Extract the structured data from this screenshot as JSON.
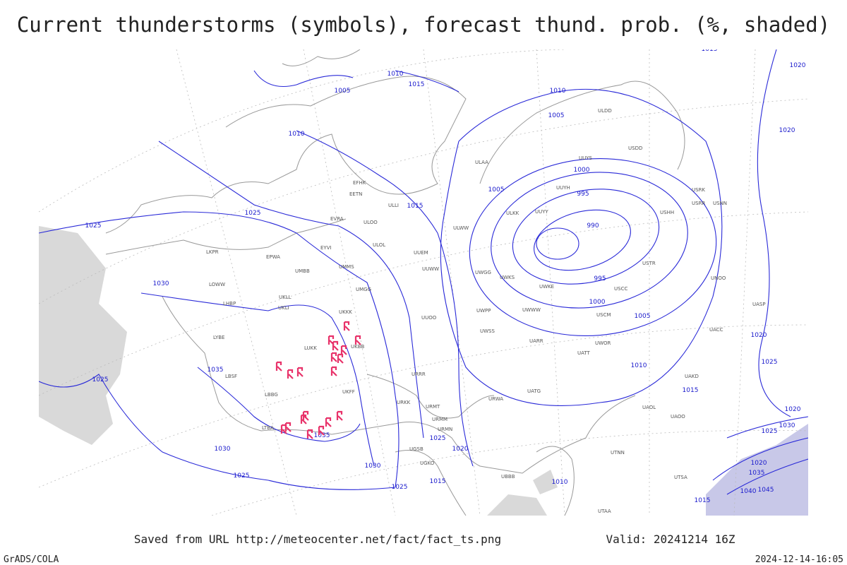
{
  "header": {
    "title": "Current thunderstorms (symbols), forecast thund. prob. (%, shaded)"
  },
  "footer": {
    "source": "Saved from URL http://meteocenter.net/fact/fact_ts.png",
    "valid": "Valid: 20241214 16Z",
    "software": "GrADS/COLA",
    "timestamp": "2024-12-14-16:05"
  },
  "isobar_labels": [
    "1010",
    "1005",
    "1015",
    "1010",
    "1005",
    "1010",
    "1000",
    "1005",
    "995",
    "1015",
    "990",
    "1025",
    "1025",
    "1030",
    "995",
    "1000",
    "1005",
    "1010",
    "1035",
    "1025",
    "1015",
    "1020",
    "1025",
    "1020",
    "1030",
    "1025",
    "1035",
    "1025",
    "1020",
    "1030",
    "1030",
    "1025",
    "1015",
    "1010",
    "1025",
    "1015",
    "1020",
    "1035",
    "1040",
    "1045",
    "1020",
    "1020",
    "1015"
  ],
  "stations": [
    "EFHK",
    "EETN",
    "EVRA",
    "ULOO",
    "ULOL",
    "UMMS",
    "UMGG",
    "UUEM",
    "UUWW",
    "UUOO",
    "UKKK",
    "UKBB",
    "UKFF",
    "URKK",
    "URRR",
    "URMT",
    "URMM",
    "URMN",
    "LKPR",
    "EPWA",
    "EYVI",
    "UMBB",
    "LOWW",
    "LHBP",
    "LYBE",
    "LUKK",
    "LBSF",
    "LBBG",
    "LTBA",
    "UKLL",
    "UKLI",
    "UWWW",
    "UWKS",
    "UWKE",
    "UWGG",
    "UWPP",
    "UWSS",
    "URWA",
    "UATG",
    "UARR",
    "UATT",
    "UWOR",
    "USCM",
    "USCC",
    "USTR",
    "USHH",
    "USRR",
    "USRK",
    "USNN",
    "USDD",
    "ULDD",
    "UUYS",
    "UUYH",
    "UUYY",
    "ULKK",
    "ULWW",
    "ULLI",
    "ULAA",
    "UNOO",
    "UACC",
    "UASP",
    "UAKD",
    "UAOL",
    "UAOO",
    "UTNN",
    "UTSA",
    "UTAA",
    "UBBB",
    "UGSB",
    "UGKO"
  ]
}
